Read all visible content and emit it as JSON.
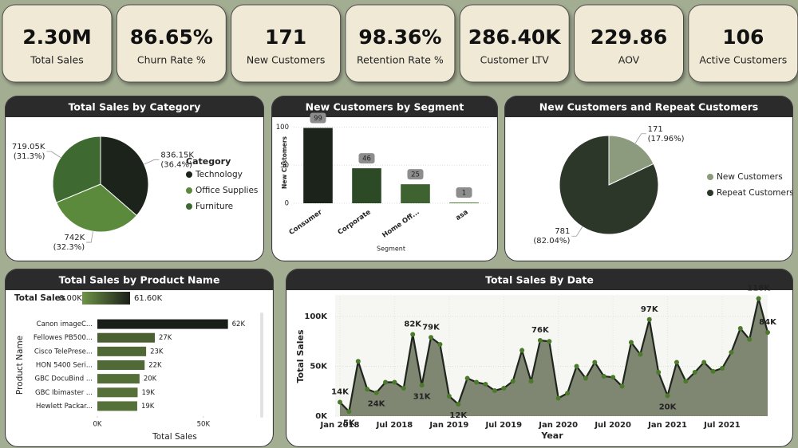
{
  "kpis": [
    {
      "value": "2.30M",
      "label": "Total Sales"
    },
    {
      "value": "86.65%",
      "label": "Churn Rate %"
    },
    {
      "value": "171",
      "label": "New Customers"
    },
    {
      "value": "98.36%",
      "label": "Retention Rate %"
    },
    {
      "value": "286.40K",
      "label": "Customer LTV"
    },
    {
      "value": "229.86",
      "label": "AOV"
    },
    {
      "value": "106",
      "label": "Active Customers"
    }
  ],
  "chart_data": [
    {
      "type": "pie",
      "title": "Total Sales by Category",
      "legend_title": "Category",
      "categories": [
        "Technology",
        "Office Supplies",
        "Furniture"
      ],
      "values": [
        836150,
        742000,
        719050
      ],
      "value_labels": [
        "836.15K",
        "742K",
        "719.05K"
      ],
      "percent_labels": [
        "(36.4%)",
        "(32.3%)",
        "(31.3%)"
      ],
      "colors": [
        "#1c231b",
        "#5b8a3c",
        "#3e6a31"
      ]
    },
    {
      "type": "bar",
      "title": "New Customers by Segment",
      "xlabel": "Segment",
      "ylabel": "New Customers",
      "categories": [
        "Consumer",
        "Corporate",
        "Home Off...",
        "asa"
      ],
      "values": [
        99,
        46,
        25,
        1
      ],
      "colors": [
        "#1c231b",
        "#2d4a27",
        "#3e6331",
        "#4d7a36"
      ],
      "ylim": [
        0,
        110
      ],
      "yticks": [
        0,
        50,
        100
      ],
      "grid": true
    },
    {
      "type": "pie",
      "title": "New Customers and Repeat Customers",
      "categories": [
        "New Customers",
        "Repeat Customers"
      ],
      "values": [
        171,
        781
      ],
      "value_labels": [
        "171",
        "781"
      ],
      "percent_labels": [
        "(17.96%)",
        "(82.04%)"
      ],
      "colors": [
        "#8c9a7d",
        "#2c3629"
      ]
    },
    {
      "type": "barh",
      "title": "Total Sales by Product Name",
      "xlabel": "Total Sales",
      "ylabel": "Product Name",
      "categories": [
        "Canon imageC...",
        "Fellowes PB500...",
        "Cisco TelePrese...",
        "HON 5400 Seri...",
        "GBC DocuBind ...",
        "GBC Ibimaster ...",
        "Hewlett Packar..."
      ],
      "values": [
        61600,
        27100,
        23000,
        22300,
        19900,
        19000,
        18800
      ],
      "value_labels": [
        "62K",
        "27K",
        "23K",
        "22K",
        "20K",
        "19K",
        "19K"
      ],
      "color_scale": {
        "label": "Total Sales",
        "min": {
          "value": 0,
          "label": "0.00K"
        },
        "max": {
          "value": 61600,
          "label": "61.60K"
        },
        "colors": [
          "#6f9447",
          "#1a1e19"
        ]
      },
      "xlim": [
        0,
        67000
      ],
      "xticks": [
        {
          "value": 0,
          "label": "0K"
        },
        {
          "value": 50000,
          "label": "50K"
        }
      ]
    },
    {
      "type": "area",
      "title": "Total Sales By Date",
      "xlabel": "Year",
      "ylabel": "Total Sales",
      "x": [
        "2018-01",
        "2018-02",
        "2018-03",
        "2018-04",
        "2018-05",
        "2018-06",
        "2018-07",
        "2018-08",
        "2018-09",
        "2018-10",
        "2018-11",
        "2018-12",
        "2019-01",
        "2019-02",
        "2019-03",
        "2019-04",
        "2019-05",
        "2019-06",
        "2019-07",
        "2019-08",
        "2019-09",
        "2019-10",
        "2019-11",
        "2019-12",
        "2020-01",
        "2020-02",
        "2020-03",
        "2020-04",
        "2020-05",
        "2020-06",
        "2020-07",
        "2020-08",
        "2020-09",
        "2020-10",
        "2020-11",
        "2020-12",
        "2021-01",
        "2021-02",
        "2021-03",
        "2021-04",
        "2021-05",
        "2021-06",
        "2021-07",
        "2021-08",
        "2021-09",
        "2021-10",
        "2021-11",
        "2021-12"
      ],
      "values": [
        14000,
        4600,
        55000,
        27000,
        23500,
        34000,
        34000,
        28000,
        82000,
        31000,
        79000,
        72000,
        20000,
        12000,
        38000,
        34000,
        32000,
        25600,
        28000,
        35000,
        66000,
        35000,
        76000,
        75000,
        18000,
        23000,
        50000,
        38000,
        54000,
        40000,
        39000,
        30000,
        74000,
        62000,
        97000,
        44000,
        20500,
        54000,
        35000,
        44000,
        54000,
        45000,
        48000,
        64000,
        88000,
        77000,
        118000,
        84000
      ],
      "value_labels": [
        "14K",
        "5K",
        null,
        null,
        "24K",
        null,
        null,
        null,
        "82K",
        "31K",
        "79K",
        null,
        null,
        "12K",
        null,
        null,
        null,
        null,
        null,
        null,
        null,
        null,
        "76K",
        null,
        null,
        null,
        null,
        null,
        null,
        null,
        null,
        null,
        null,
        null,
        "97K",
        null,
        "20K",
        null,
        null,
        null,
        null,
        null,
        null,
        null,
        null,
        null,
        "118K",
        "84K"
      ],
      "color": "#1f261d",
      "fill": "#7f8672",
      "marker_color": "#4b7a2b",
      "ylim": [
        0,
        120000
      ],
      "yticks": [
        {
          "value": 0,
          "label": "0K"
        },
        {
          "value": 50000,
          "label": "50K"
        },
        {
          "value": 100000,
          "label": "100K"
        }
      ],
      "xticks": [
        {
          "value": "2018-01",
          "label": "Jan 2018"
        },
        {
          "value": "2018-07",
          "label": "Jul 2018"
        },
        {
          "value": "2019-01",
          "label": "Jan 2019"
        },
        {
          "value": "2019-07",
          "label": "Jul 2019"
        },
        {
          "value": "2020-01",
          "label": "Jan 2020"
        },
        {
          "value": "2020-07",
          "label": "Jul 2020"
        },
        {
          "value": "2021-01",
          "label": "Jan 2021"
        },
        {
          "value": "2021-07",
          "label": "Jul 2021"
        }
      ],
      "grid": true
    }
  ]
}
